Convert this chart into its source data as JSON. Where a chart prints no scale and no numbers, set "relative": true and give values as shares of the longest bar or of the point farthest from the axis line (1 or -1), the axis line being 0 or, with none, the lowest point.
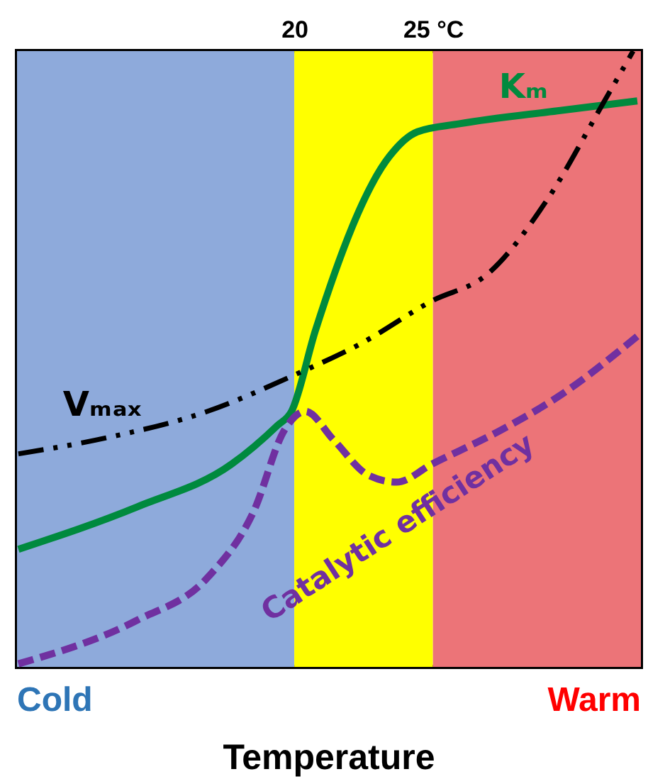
{
  "chart_data": {
    "type": "line",
    "relative": true,
    "xlabel": "Temperature",
    "xlim": [
      10,
      32.5
    ],
    "xticks": [
      20,
      {
        "value": 25,
        "label": "25 °C"
      }
    ],
    "grid": false,
    "series": [
      {
        "name": "Kₘ",
        "color": "#008a3e",
        "line_style": "solid",
        "x": [
          10.05,
          14.34,
          17.73,
          19.39,
          19.9,
          20.76,
          23.43,
          24.44,
          25.96,
          29.49,
          32.37
        ],
        "values": [
          0.191,
          0.26,
          0.329,
          0.392,
          0.415,
          0.546,
          0.829,
          0.869,
          0.882,
          0.903,
          0.919
        ]
      },
      {
        "name": "Vₘₐₓ",
        "color": "#000000",
        "line_style": "dashdot",
        "x": [
          10.05,
          13.33,
          16.87,
          20.05,
          22.32,
          24.95,
          26.97,
          29.14,
          31.16,
          32.22
        ],
        "values": [
          0.346,
          0.373,
          0.415,
          0.475,
          0.523,
          0.594,
          0.638,
          0.76,
          0.917,
          1.0
        ]
      },
      {
        "name": "Catalytic efficiency",
        "color": "#7030a0",
        "line_style": "dashed",
        "x": [
          10.05,
          14.34,
          16.87,
          18.54,
          19.65,
          20.4,
          21.41,
          22.68,
          23.69,
          24.95,
          27.47,
          29.49,
          32.37
        ],
        "values": [
          0.005,
          0.076,
          0.145,
          0.253,
          0.385,
          0.415,
          0.369,
          0.311,
          0.3,
          0.329,
          0.385,
          0.438,
          0.537
        ]
      }
    ],
    "bands": [
      {
        "axis": "x",
        "from": 10,
        "to": 20,
        "color": "#8eaadb"
      },
      {
        "axis": "x",
        "from": 20,
        "to": 25,
        "color": "#ffff00"
      },
      {
        "axis": "x",
        "from": 25,
        "to": 32.5,
        "color": "#ec7478"
      }
    ],
    "annotations": [
      "Cold",
      "Warm"
    ]
  }
}
